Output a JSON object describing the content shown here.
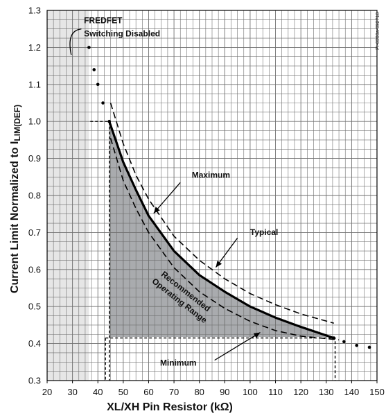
{
  "chart_data": {
    "type": "line",
    "xlabel": "XL/XH Pin Resistor (kΩ)",
    "ylabel_main": "Current Limit  Normalized to I",
    "ylabel_sub": "LIM(DEF)",
    "figure_id": "PI-8300a-092718",
    "xlim": [
      20,
      150
    ],
    "ylim": [
      0.3,
      1.3
    ],
    "xticks": [
      20,
      30,
      40,
      50,
      60,
      70,
      80,
      90,
      100,
      110,
      120,
      130,
      140,
      150
    ],
    "yticks": [
      0.3,
      0.4,
      0.5,
      0.6,
      0.7,
      0.8,
      0.9,
      1.0,
      1.1,
      1.2,
      1.3
    ],
    "grid": true,
    "disabled_region": {
      "x": [
        20,
        36.5
      ]
    },
    "series": [
      {
        "style": "solid",
        "x": [
          44.5,
          50,
          55,
          60,
          70,
          80,
          90,
          100,
          110,
          120,
          133
        ],
        "y": [
          1.0,
          0.89,
          0.815,
          0.745,
          0.65,
          0.585,
          0.54,
          0.5,
          0.47,
          0.445,
          0.415
        ]
      },
      {
        "style": "dashed",
        "x": [
          45,
          50,
          55,
          60,
          70,
          80,
          90,
          100,
          110,
          120,
          135
        ],
        "y": [
          0.955,
          0.84,
          0.765,
          0.7,
          0.605,
          0.54,
          0.495,
          0.46,
          0.435,
          0.42,
          0.41
        ]
      },
      {
        "style": "dashed",
        "x": [
          45,
          50,
          55,
          60,
          70,
          80,
          90,
          100,
          110,
          120,
          133
        ],
        "y": [
          1.05,
          0.94,
          0.855,
          0.79,
          0.69,
          0.625,
          0.575,
          0.535,
          0.505,
          0.48,
          0.455
        ]
      },
      {
        "style": "dotted",
        "x": [
          36.5,
          38.5,
          40,
          42,
          44.5
        ],
        "y": [
          1.2,
          1.14,
          1.1,
          1.05,
          1.0
        ]
      },
      {
        "style": "dotted",
        "x": [
          133,
          137,
          142,
          147
        ],
        "y": [
          0.415,
          0.405,
          0.395,
          0.39
        ]
      }
    ],
    "annotations": [
      {
        "text": "FREDFET",
        "x": 34.5,
        "y": 1.265
      },
      {
        "text": "Switching Disabled",
        "x": 34.5,
        "y": 1.23
      },
      {
        "text": "Maximum",
        "x": 77,
        "y": 0.848
      },
      {
        "text": "Typical",
        "x": 100,
        "y": 0.693
      },
      {
        "text": "Minimum",
        "x": 64.5,
        "y": 0.34
      },
      {
        "text": "Recommended",
        "x": 74,
        "y": 0.535
      },
      {
        "text": "Operating Range",
        "x": 71.5,
        "y": 0.51
      }
    ]
  },
  "colors": {
    "region_fill": "#a9abae",
    "disabled_fill": "#e6e6e6",
    "grid": "#6f6f6f",
    "line": "#000000"
  }
}
